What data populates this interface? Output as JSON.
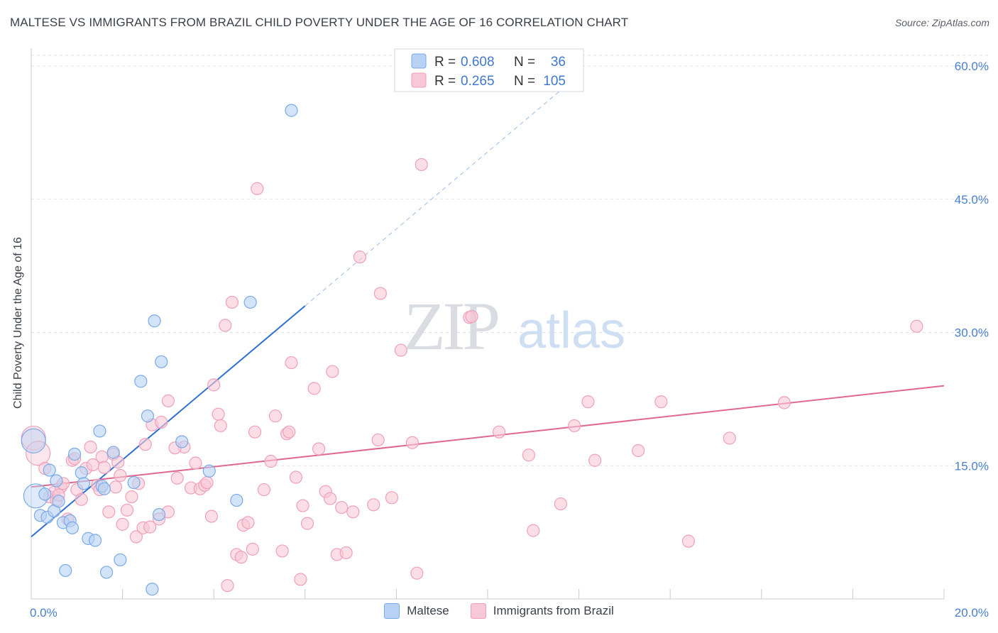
{
  "title": "MALTESE VS IMMIGRANTS FROM BRAZIL CHILD POVERTY UNDER THE AGE OF 16 CORRELATION CHART",
  "source": "Source: ZipAtlas.com",
  "watermark": {
    "zip": "ZIP",
    "atlas": "atlas"
  },
  "chart_data": {
    "type": "scatter",
    "ylabel": "Child Poverty Under the Age of 16",
    "xlim": [
      0,
      20
    ],
    "ylim": [
      0,
      62
    ],
    "x_tick_labels": {
      "left": "0.0%",
      "right": "20.0%"
    },
    "y_ticks": [
      {
        "value": 15,
        "label": "15.0%"
      },
      {
        "value": 30,
        "label": "30.0%"
      },
      {
        "value": 45,
        "label": "45.0%"
      },
      {
        "value": 60,
        "label": "60.0%"
      }
    ],
    "grid": true,
    "legend_placement": "top-center",
    "series": [
      {
        "name": "Maltese",
        "color": "#7aaae8",
        "fill": "#b7d2f4",
        "line_color": "#2f6fd0",
        "R": "0.608",
        "N": "36",
        "trend": {
          "x0": 0,
          "y0": 7.0,
          "x1": 6.0,
          "y1": 33.0,
          "dash_to_x": 12.0
        },
        "points": [
          [
            0.1,
            11.6
          ],
          [
            0.3,
            11.8
          ],
          [
            0.2,
            9.4
          ],
          [
            0.35,
            9.2
          ],
          [
            0.4,
            14.5
          ],
          [
            0.5,
            9.9
          ],
          [
            0.55,
            13.3
          ],
          [
            0.6,
            11.0
          ],
          [
            0.7,
            8.6
          ],
          [
            0.75,
            3.2
          ],
          [
            0.85,
            8.8
          ],
          [
            0.9,
            8.0
          ],
          [
            0.95,
            16.3
          ],
          [
            1.1,
            14.2
          ],
          [
            1.15,
            13.0
          ],
          [
            1.25,
            6.8
          ],
          [
            1.4,
            6.6
          ],
          [
            1.55,
            12.7
          ],
          [
            1.6,
            12.4
          ],
          [
            1.5,
            18.9
          ],
          [
            1.65,
            3.0
          ],
          [
            1.8,
            16.5
          ],
          [
            1.95,
            4.4
          ],
          [
            2.25,
            13.1
          ],
          [
            2.4,
            24.5
          ],
          [
            2.55,
            20.6
          ],
          [
            2.65,
            1.1
          ],
          [
            2.7,
            31.3
          ],
          [
            2.8,
            9.5
          ],
          [
            2.85,
            26.7
          ],
          [
            3.3,
            17.7
          ],
          [
            3.9,
            14.4
          ],
          [
            4.5,
            11.1
          ],
          [
            4.8,
            33.4
          ],
          [
            5.7,
            55.0
          ],
          [
            0.05,
            17.8
          ]
        ]
      },
      {
        "name": "Immigrants from Brazil",
        "color": "#f0a0ba",
        "fill": "#f8c8d6",
        "line_color": "#e06890",
        "R": "0.265",
        "N": "105",
        "trend": {
          "x0": 0,
          "y0": 12.6,
          "x1": 20.0,
          "y1": 24.0
        },
        "points": [
          [
            0.05,
            18.1
          ],
          [
            0.15,
            16.4
          ],
          [
            0.3,
            14.7
          ],
          [
            0.4,
            11.5
          ],
          [
            0.5,
            12.0
          ],
          [
            0.55,
            11.1
          ],
          [
            0.65,
            12.6
          ],
          [
            0.7,
            13.0
          ],
          [
            0.8,
            9.0
          ],
          [
            0.9,
            15.6
          ],
          [
            0.95,
            15.8
          ],
          [
            1.0,
            12.3
          ],
          [
            1.1,
            11.2
          ],
          [
            1.2,
            14.7
          ],
          [
            1.3,
            17.1
          ],
          [
            1.35,
            15.1
          ],
          [
            1.45,
            12.8
          ],
          [
            1.5,
            12.3
          ],
          [
            1.55,
            16.0
          ],
          [
            1.6,
            14.8
          ],
          [
            1.7,
            9.8
          ],
          [
            1.8,
            16.3
          ],
          [
            1.9,
            15.4
          ],
          [
            1.95,
            13.9
          ],
          [
            2.0,
            8.4
          ],
          [
            2.1,
            10.0
          ],
          [
            2.2,
            11.5
          ],
          [
            2.3,
            7.0
          ],
          [
            2.35,
            13.0
          ],
          [
            2.45,
            8.0
          ],
          [
            2.5,
            17.4
          ],
          [
            2.6,
            8.1
          ],
          [
            2.65,
            19.6
          ],
          [
            2.8,
            9.0
          ],
          [
            2.85,
            19.9
          ],
          [
            3.0,
            22.3
          ],
          [
            3.0,
            9.8
          ],
          [
            3.2,
            13.6
          ],
          [
            3.35,
            17.1
          ],
          [
            3.5,
            12.5
          ],
          [
            3.6,
            15.3
          ],
          [
            3.7,
            12.4
          ],
          [
            3.8,
            12.8
          ],
          [
            3.85,
            13.1
          ],
          [
            3.95,
            9.3
          ],
          [
            4.0,
            24.1
          ],
          [
            4.1,
            20.8
          ],
          [
            4.15,
            19.5
          ],
          [
            4.25,
            30.8
          ],
          [
            4.3,
            1.5
          ],
          [
            4.4,
            33.4
          ],
          [
            4.5,
            5.0
          ],
          [
            4.6,
            4.7
          ],
          [
            4.65,
            8.3
          ],
          [
            4.75,
            8.6
          ],
          [
            4.85,
            5.6
          ],
          [
            4.9,
            18.8
          ],
          [
            4.95,
            46.2
          ],
          [
            5.1,
            12.3
          ],
          [
            5.25,
            15.5
          ],
          [
            5.35,
            20.6
          ],
          [
            5.5,
            5.4
          ],
          [
            5.6,
            18.6
          ],
          [
            5.65,
            18.8
          ],
          [
            5.7,
            26.6
          ],
          [
            5.8,
            13.7
          ],
          [
            5.9,
            2.2
          ],
          [
            5.95,
            10.5
          ],
          [
            6.05,
            8.5
          ],
          [
            6.2,
            23.7
          ],
          [
            6.3,
            16.9
          ],
          [
            6.45,
            12.1
          ],
          [
            6.55,
            11.3
          ],
          [
            6.6,
            25.6
          ],
          [
            6.7,
            5.0
          ],
          [
            6.8,
            10.3
          ],
          [
            6.9,
            5.2
          ],
          [
            7.05,
            9.8
          ],
          [
            7.2,
            38.5
          ],
          [
            7.5,
            10.6
          ],
          [
            7.6,
            17.9
          ],
          [
            7.65,
            34.4
          ],
          [
            7.9,
            11.4
          ],
          [
            8.1,
            28.0
          ],
          [
            8.35,
            17.6
          ],
          [
            8.45,
            2.9
          ],
          [
            8.55,
            48.9
          ],
          [
            9.6,
            31.7
          ],
          [
            9.65,
            31.8
          ],
          [
            10.25,
            18.8
          ],
          [
            10.9,
            16.2
          ],
          [
            11.0,
            7.7
          ],
          [
            11.6,
            10.7
          ],
          [
            11.9,
            19.5
          ],
          [
            12.2,
            22.2
          ],
          [
            12.35,
            15.6
          ],
          [
            13.3,
            16.7
          ],
          [
            13.8,
            22.2
          ],
          [
            14.4,
            6.5
          ],
          [
            15.3,
            18.1
          ],
          [
            16.5,
            22.1
          ],
          [
            19.4,
            30.7
          ],
          [
            0.6,
            11.7
          ],
          [
            1.85,
            12.6
          ],
          [
            3.15,
            17.0
          ]
        ]
      }
    ]
  }
}
